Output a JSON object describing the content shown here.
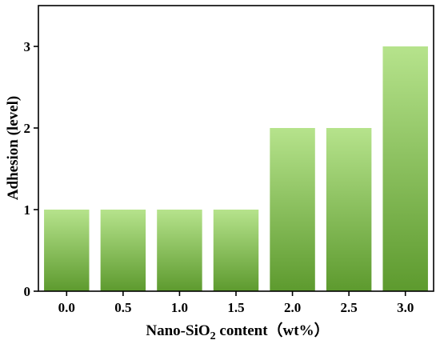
{
  "chart_data": {
    "type": "bar",
    "categories": [
      "0.0",
      "0.5",
      "1.0",
      "1.5",
      "2.0",
      "2.5",
      "3.0"
    ],
    "values": [
      1,
      1,
      1,
      1,
      2,
      2,
      3
    ],
    "ylabel": "Adhesion (level)",
    "xlabel": {
      "prefix": "Nano-SiO",
      "subscript": "2",
      "suffix": " content（wt%）"
    },
    "ylim": [
      0,
      3.5
    ],
    "yticks": [
      "0",
      "1",
      "2",
      "3"
    ],
    "grid": false,
    "legend": "none",
    "colors": {
      "bar_top": "#b6e38c",
      "bar_bottom": "#5d9a2e",
      "axis": "#000000"
    }
  }
}
